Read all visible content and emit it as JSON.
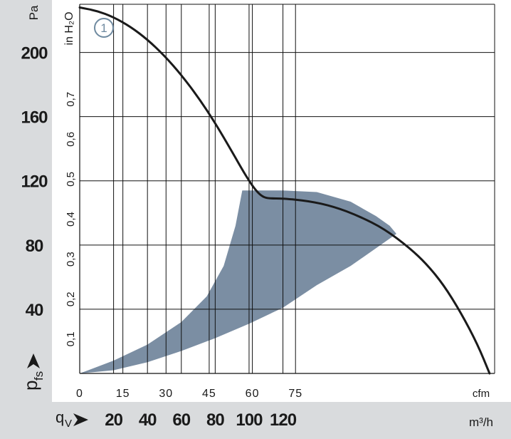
{
  "chart_data": {
    "type": "line",
    "title": "",
    "x_axis_bottom": {
      "unit": "m³/h",
      "symbol_main": "q",
      "symbol_sub": "V",
      "ticks": [
        "20",
        "40",
        "60",
        "80",
        "100",
        "120"
      ],
      "range": [
        0,
        245
      ]
    },
    "x_axis_secondary": {
      "unit": "cfm",
      "ticks": [
        "0",
        "15",
        "30",
        "45",
        "60",
        "75"
      ],
      "range": [
        0,
        144
      ]
    },
    "y_axis_left": {
      "unit": "Pa",
      "symbol_main": "p",
      "symbol_sub": "fs",
      "ticks": [
        "40",
        "80",
        "120",
        "160",
        "200"
      ],
      "range": [
        0,
        230
      ]
    },
    "y_axis_secondary": {
      "unit": "in H₂O",
      "ticks": [
        "0,1",
        "0,2",
        "0,3",
        "0,4",
        "0,5",
        "0,6",
        "0,7"
      ],
      "range": [
        0,
        0.92
      ]
    },
    "grid": true,
    "series": [
      {
        "name": "1",
        "color": "#1a1a1a",
        "points": [
          [
            0,
            228
          ],
          [
            10,
            226
          ],
          [
            20,
            222
          ],
          [
            30,
            216
          ],
          [
            40,
            208
          ],
          [
            50,
            198
          ],
          [
            60,
            186
          ],
          [
            70,
            172
          ],
          [
            80,
            156
          ],
          [
            90,
            138
          ],
          [
            96,
            127
          ],
          [
            100,
            120
          ],
          [
            104,
            114
          ],
          [
            108,
            110
          ],
          [
            112,
            109
          ],
          [
            120,
            109
          ],
          [
            135,
            107.5
          ],
          [
            150,
            104
          ],
          [
            165,
            98
          ],
          [
            180,
            90
          ],
          [
            195,
            78
          ],
          [
            205,
            68
          ],
          [
            215,
            55
          ],
          [
            225,
            38
          ],
          [
            235,
            18
          ],
          [
            242,
            0
          ]
        ]
      }
    ],
    "operating_range": {
      "color": "#7b8ea3",
      "upper": [
        [
          0,
          0
        ],
        [
          20,
          8
        ],
        [
          40,
          18
        ],
        [
          60,
          32
        ],
        [
          75,
          48
        ],
        [
          85,
          67
        ],
        [
          92,
          92
        ],
        [
          96,
          114
        ],
        [
          97,
          114
        ],
        [
          120,
          114
        ],
        [
          140,
          113
        ],
        [
          160,
          107
        ],
        [
          175,
          98
        ],
        [
          183,
          92
        ],
        [
          187,
          87
        ]
      ],
      "lower": [
        [
          187,
          87
        ],
        [
          175,
          78
        ],
        [
          160,
          67
        ],
        [
          140,
          55
        ],
        [
          120,
          41
        ],
        [
          100,
          31
        ],
        [
          80,
          22
        ],
        [
          60,
          14
        ],
        [
          40,
          7
        ],
        [
          20,
          2
        ],
        [
          0,
          0
        ]
      ]
    },
    "curve_label": "1"
  },
  "colors": {
    "panel": "#d9dbdd",
    "grid": "#111111",
    "text": "#1a1a1a",
    "label_circle": "#6f8aa0"
  }
}
